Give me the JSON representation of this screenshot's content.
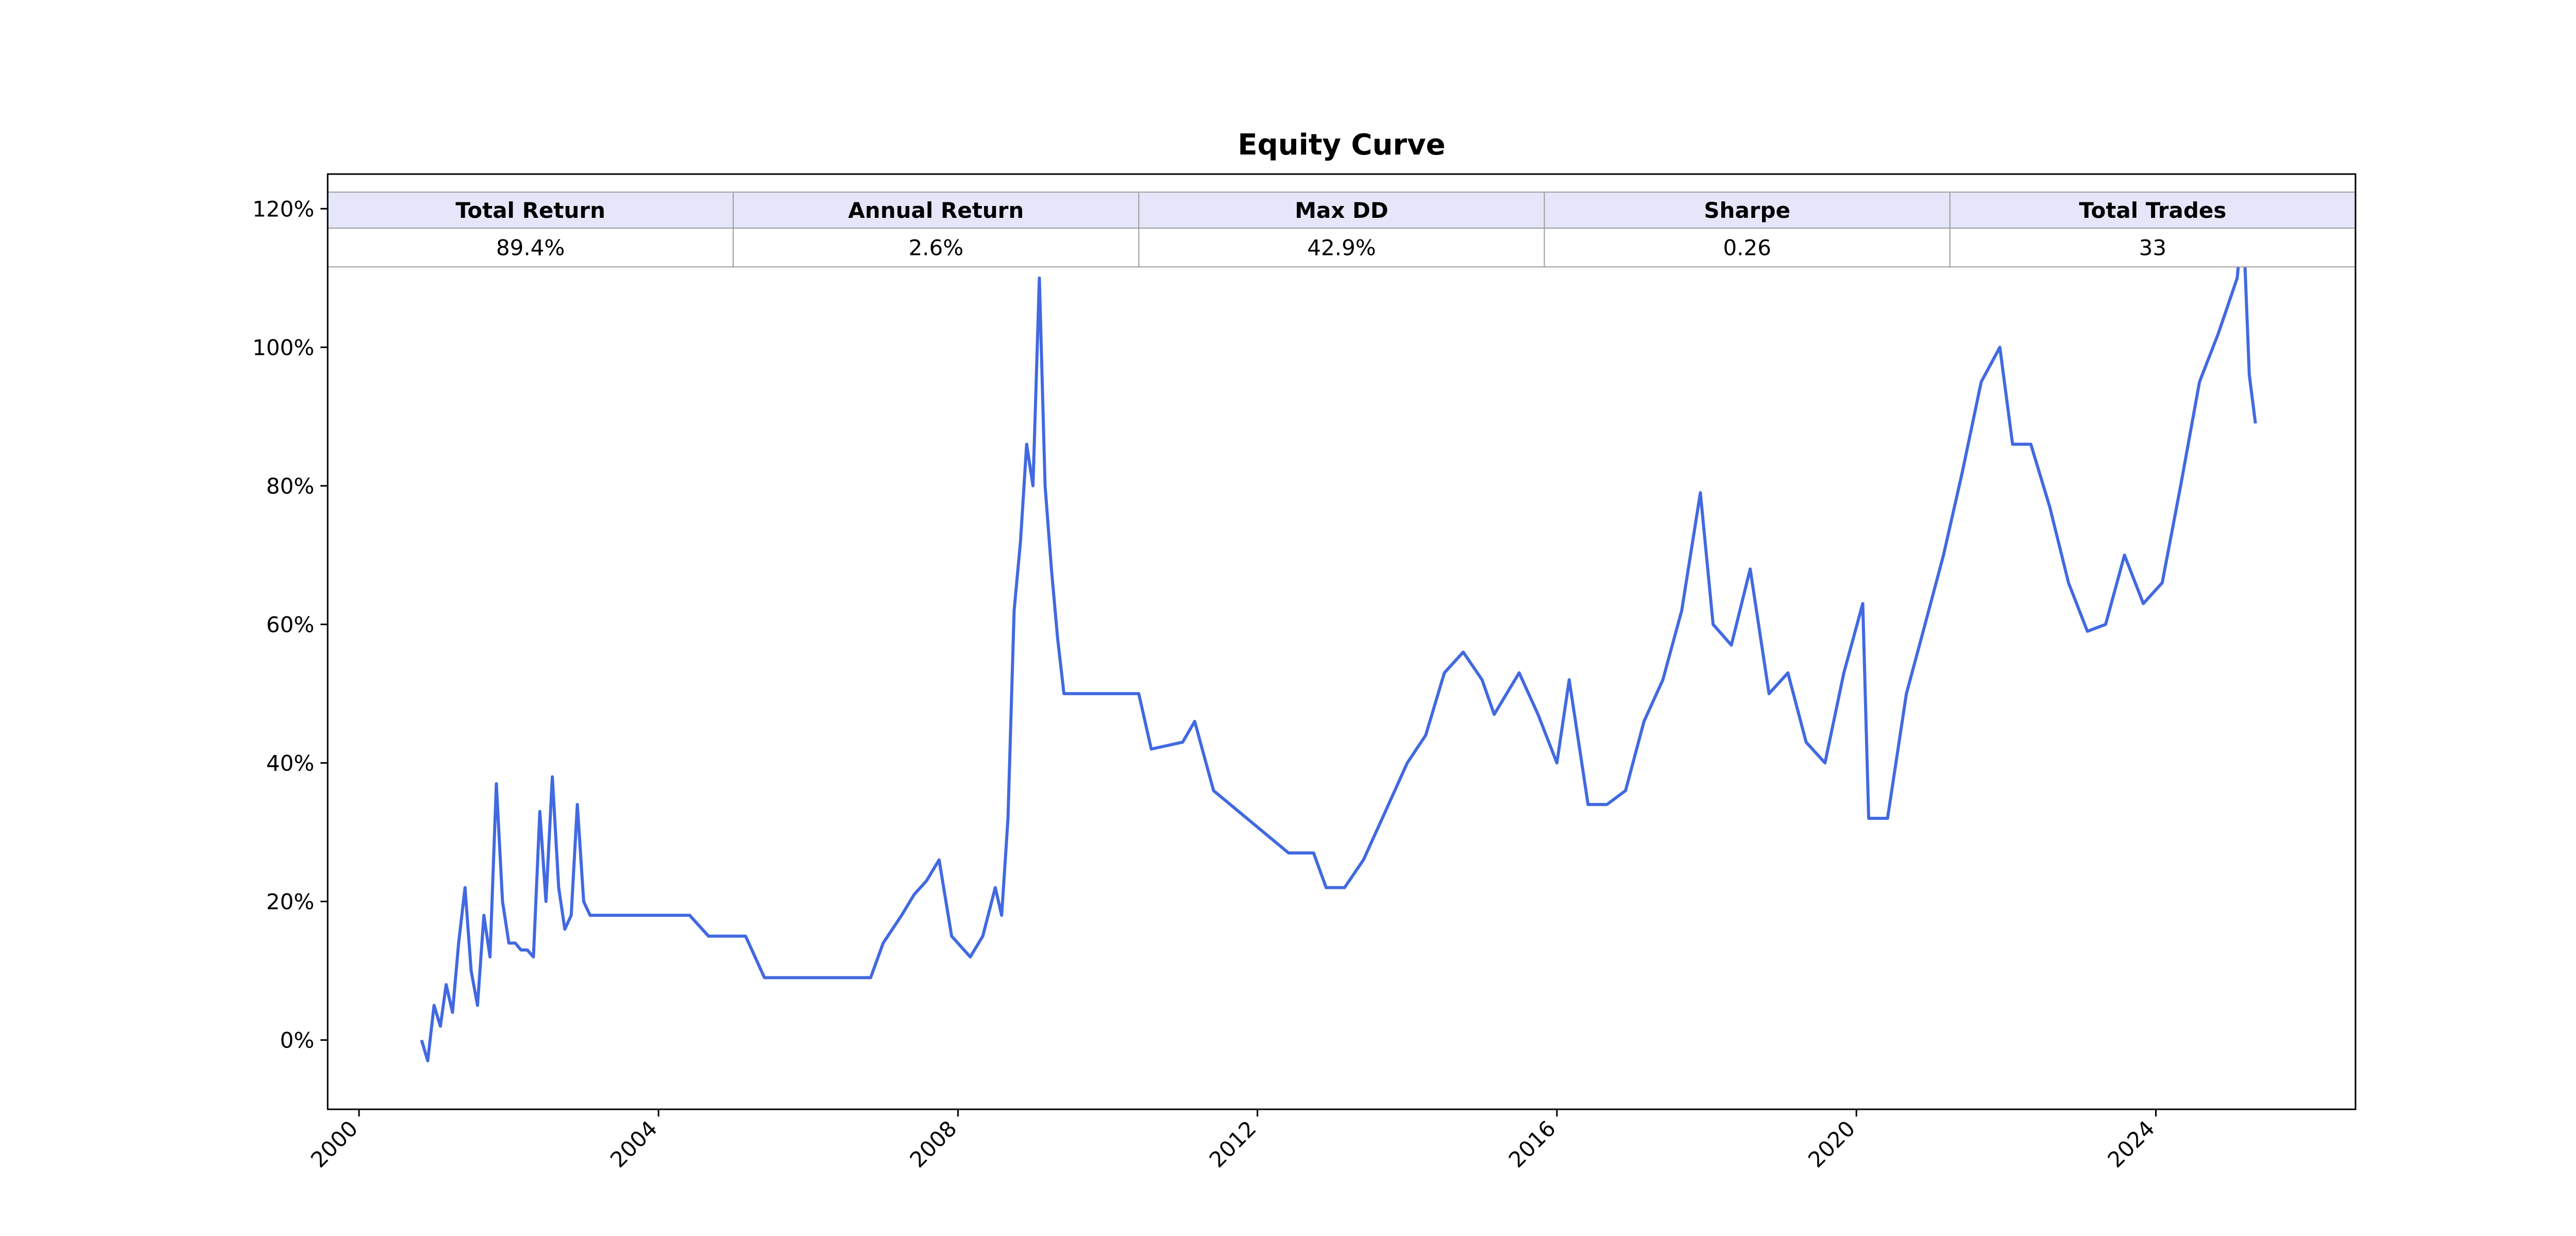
{
  "chart_data": {
    "type": "line",
    "title": "Equity Curve",
    "xlabel": "",
    "ylabel": "",
    "x_ticks": [
      "2000",
      "2004",
      "2008",
      "2012",
      "2016",
      "2020",
      "2024"
    ],
    "y_ticks": [
      "0%",
      "20%",
      "40%",
      "60%",
      "80%",
      "100%",
      "120%"
    ],
    "xlim": [
      "1999-08-01",
      "2026-09-01"
    ],
    "ylim": [
      -10,
      125
    ],
    "grid": false,
    "line_color": "#4169E1",
    "stats_table": {
      "headers": [
        "Total Return",
        "Annual Return",
        "Max DD",
        "Sharpe",
        "Total Trades"
      ],
      "values": [
        "89.4%",
        "2.6%",
        "42.9%",
        "0.26",
        "33"
      ],
      "header_bg": "#E6E6FA"
    },
    "series": [
      {
        "x": [
          "2000-11-01",
          "2000-12-01",
          "2001-01-01",
          "2001-02-01",
          "2001-03-01",
          "2001-04-01",
          "2001-05-01",
          "2001-06-01",
          "2001-07-01",
          "2001-08-01",
          "2001-09-01",
          "2001-10-01",
          "2001-11-01",
          "2001-12-01",
          "2002-01-01",
          "2002-02-01",
          "2002-03-01",
          "2002-04-01",
          "2002-05-01",
          "2002-06-01",
          "2002-07-01",
          "2002-08-01",
          "2002-09-01",
          "2002-10-01",
          "2002-11-01",
          "2002-12-01",
          "2003-01-01",
          "2003-02-01",
          "2003-03-01",
          "2003-04-01",
          "2003-06-01",
          "2004-06-01",
          "2004-09-01",
          "2005-01-01",
          "2005-03-01",
          "2005-06-01",
          "2006-01-01",
          "2006-11-01",
          "2007-01-01",
          "2007-04-01",
          "2007-06-01",
          "2007-08-01",
          "2007-10-01",
          "2007-12-01",
          "2008-03-01",
          "2008-05-01",
          "2008-07-01",
          "2008-08-01",
          "2008-09-01",
          "2008-10-01",
          "2008-11-01",
          "2008-12-01",
          "2009-01-01",
          "2009-02-01",
          "2009-03-01",
          "2009-04-01",
          "2009-05-01",
          "2009-06-01",
          "2009-08-01",
          "2010-06-01",
          "2010-08-01",
          "2011-01-01",
          "2011-03-01",
          "2011-06-01",
          "2012-06-01",
          "2012-10-01",
          "2012-12-01",
          "2013-03-01",
          "2013-06-01",
          "2013-09-01",
          "2014-01-01",
          "2014-04-01",
          "2014-07-01",
          "2014-10-01",
          "2015-01-01",
          "2015-03-01",
          "2015-07-01",
          "2015-10-01",
          "2016-01-01",
          "2016-03-01",
          "2016-06-01",
          "2016-09-01",
          "2016-12-01",
          "2017-03-01",
          "2017-06-01",
          "2017-09-01",
          "2017-12-01",
          "2018-02-01",
          "2018-05-01",
          "2018-08-01",
          "2018-11-01",
          "2019-02-01",
          "2019-05-01",
          "2019-08-01",
          "2019-11-01",
          "2020-02-01",
          "2020-03-01",
          "2020-06-01",
          "2020-09-01",
          "2020-12-01",
          "2021-03-01",
          "2021-06-01",
          "2021-09-01",
          "2021-12-01",
          "2022-02-01",
          "2022-05-01",
          "2022-08-01",
          "2022-11-01",
          "2023-02-01",
          "2023-05-01",
          "2023-08-01",
          "2023-11-01",
          "2024-02-01",
          "2024-05-01",
          "2024-08-01",
          "2024-11-01",
          "2025-02-01",
          "2025-03-01",
          "2025-04-01",
          "2025-05-01"
        ],
        "y": [
          0,
          -3,
          5,
          2,
          8,
          4,
          14,
          22,
          10,
          5,
          18,
          12,
          37,
          20,
          14,
          14,
          13,
          13,
          12,
          33,
          20,
          38,
          22,
          16,
          18,
          34,
          20,
          18,
          18,
          18,
          18,
          18,
          15,
          15,
          15,
          9,
          9,
          9,
          14,
          18,
          21,
          23,
          26,
          15,
          12,
          15,
          22,
          18,
          32,
          62,
          72,
          86,
          80,
          110,
          80,
          68,
          58,
          50,
          50,
          50,
          42,
          43,
          46,
          36,
          27,
          27,
          22,
          22,
          26,
          32,
          40,
          44,
          53,
          56,
          52,
          47,
          53,
          47,
          40,
          52,
          34,
          34,
          36,
          46,
          52,
          62,
          79,
          60,
          57,
          68,
          50,
          53,
          43,
          40,
          53,
          63,
          32,
          32,
          50,
          60,
          70,
          82,
          95,
          100,
          86,
          86,
          77,
          66,
          59,
          60,
          70,
          63,
          66,
          80,
          95,
          102,
          110,
          119,
          96,
          89
        ]
      }
    ]
  }
}
